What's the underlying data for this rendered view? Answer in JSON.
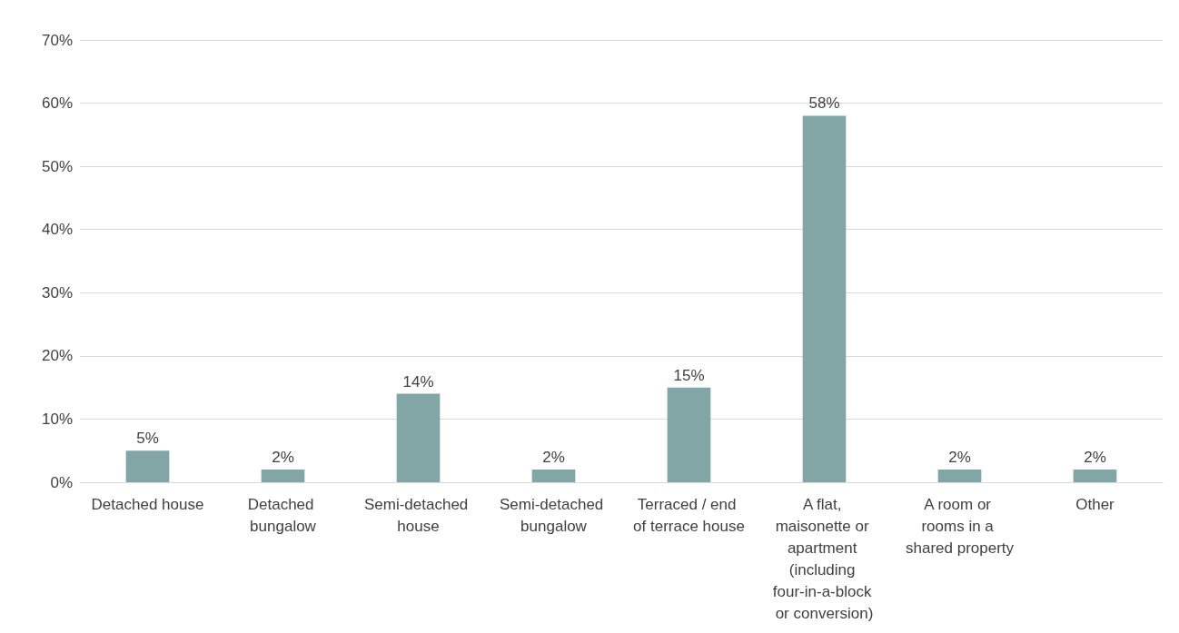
{
  "chart_data": {
    "type": "bar",
    "categories": [
      "Detached house",
      "Detached bungalow",
      "Semi-detached house",
      "Semi-detached bungalow",
      "Terraced / end of terrace house",
      "A flat, maisonette or apartment (including four-in-a-block or conversion)",
      "A room or rooms in a shared property",
      "Other"
    ],
    "values": [
      5,
      2,
      14,
      2,
      15,
      58,
      2,
      2
    ],
    "value_labels": [
      "5%",
      "2%",
      "14%",
      "2%",
      "15%",
      "58%",
      "2%",
      "2%"
    ],
    "color": "#82a6a6",
    "ylim": [
      0,
      70
    ],
    "yticks": [
      {
        "value": 0,
        "label": "0%"
      },
      {
        "value": 10,
        "label": "10%"
      },
      {
        "value": 20,
        "label": "20%"
      },
      {
        "value": 30,
        "label": "30%"
      },
      {
        "value": 40,
        "label": "40%"
      },
      {
        "value": 50,
        "label": "50%"
      },
      {
        "value": 60,
        "label": "60%"
      },
      {
        "value": 70,
        "label": "70%"
      }
    ],
    "grid": "y"
  }
}
